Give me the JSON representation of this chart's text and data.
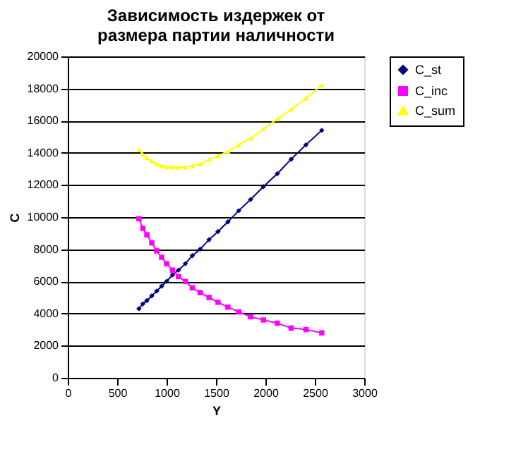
{
  "chart_data": {
    "type": "line",
    "title": "Зависимость издержек от размера партии наличности",
    "xlabel": "Y",
    "ylabel": "C",
    "x": [
      720,
      760,
      800,
      850,
      900,
      950,
      1000,
      1060,
      1120,
      1190,
      1260,
      1340,
      1430,
      1520,
      1620,
      1730,
      1850,
      1980,
      2120,
      2260,
      2410,
      2570
    ],
    "series": [
      {
        "name": "C_st",
        "color": "#000080",
        "marker": "diamond",
        "values": [
          4300,
          4600,
          4800,
          5100,
          5400,
          5700,
          6000,
          6400,
          6700,
          7100,
          7600,
          8000,
          8600,
          9100,
          9700,
          10400,
          11100,
          11900,
          12700,
          13600,
          14500,
          15400
        ]
      },
      {
        "name": "C_inc",
        "color": "#ff00ff",
        "marker": "square",
        "values": [
          9900,
          9300,
          8900,
          8400,
          7900,
          7500,
          7100,
          6700,
          6300,
          6000,
          5600,
          5300,
          5000,
          4700,
          4400,
          4100,
          3800,
          3600,
          3400,
          3100,
          3000,
          2800
        ]
      },
      {
        "name": "C_sum",
        "color": "#ffff00",
        "marker": "triangle",
        "values": [
          14200,
          13900,
          13700,
          13500,
          13300,
          13200,
          13100,
          13100,
          13100,
          13100,
          13200,
          13300,
          13600,
          13800,
          14100,
          14500,
          14900,
          15500,
          16100,
          16700,
          17400,
          18200
        ]
      }
    ],
    "xlim": [
      0,
      3000
    ],
    "xticks": [
      0,
      500,
      1000,
      1500,
      2000,
      2500,
      3000
    ],
    "ylim": [
      0,
      20000
    ],
    "yticks": [
      0,
      2000,
      4000,
      6000,
      8000,
      10000,
      12000,
      14000,
      16000,
      18000,
      20000
    ],
    "grid": "y",
    "legend": "right",
    "line_style": "solid"
  }
}
